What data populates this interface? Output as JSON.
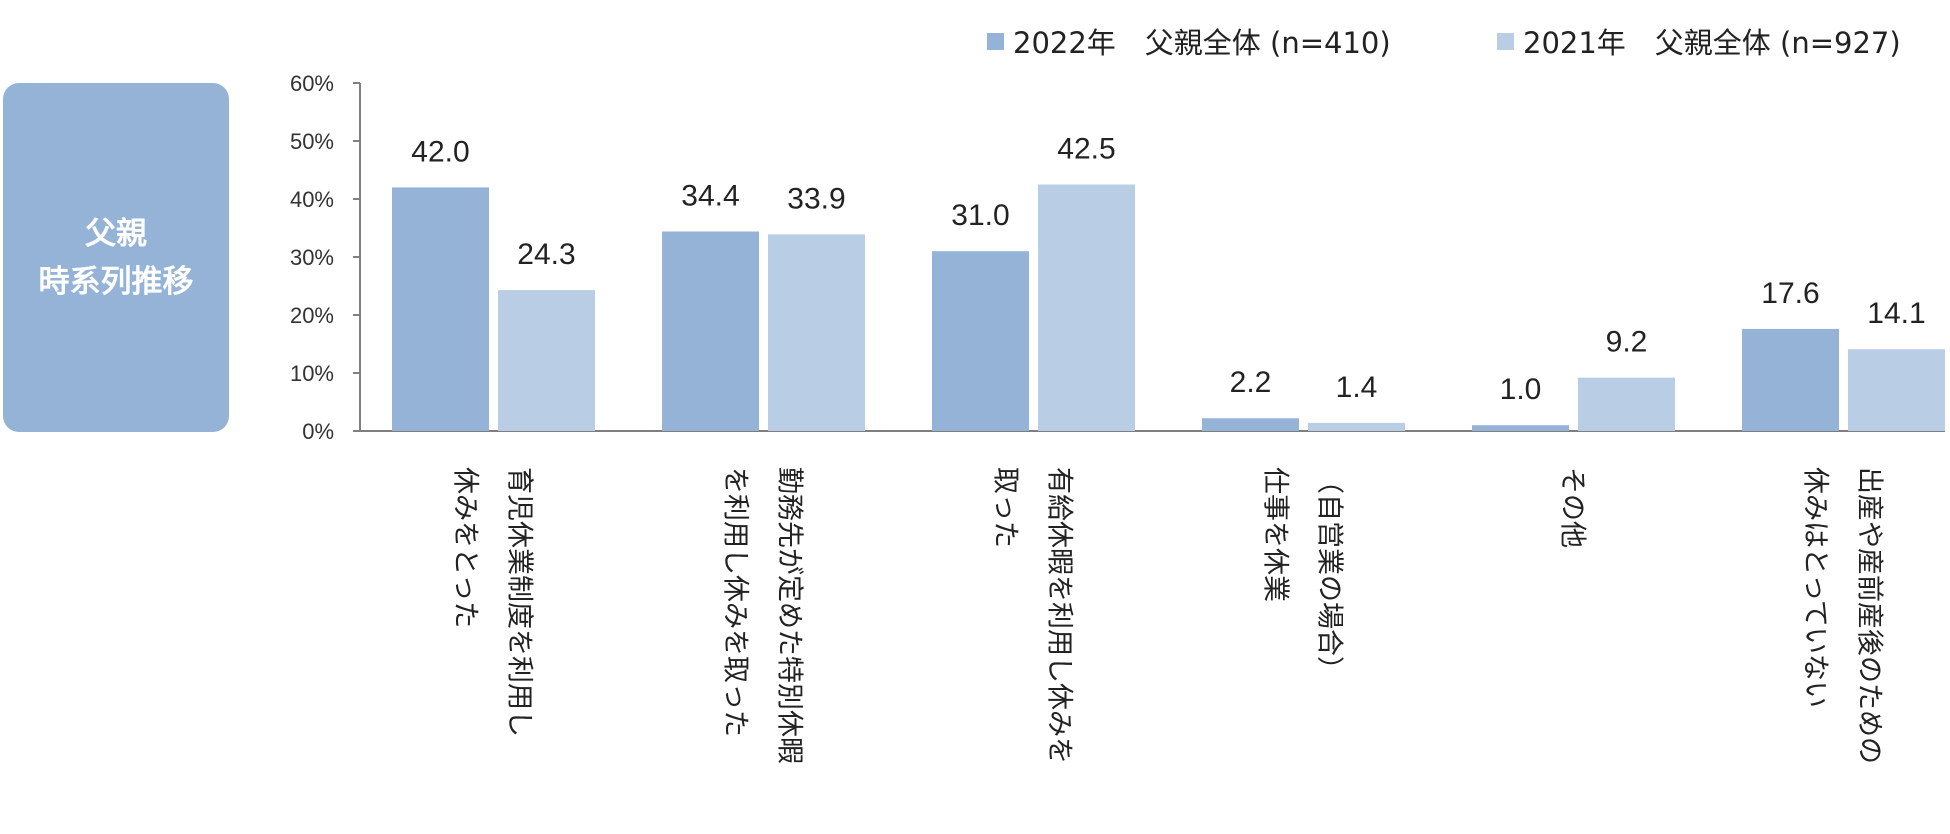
{
  "side_label": {
    "line1": "父親",
    "line2": "時系列推移"
  },
  "colors": {
    "series_2022": "#95b3d7",
    "series_2021": "#b9cde5",
    "axis": "#7f7f7f",
    "side_box": "#95b3d7"
  },
  "chart_data": {
    "type": "bar",
    "title": "",
    "xlabel": "",
    "ylabel": "",
    "ylim": [
      0,
      60
    ],
    "yticks": [
      "0%",
      "10%",
      "20%",
      "30%",
      "40%",
      "50%",
      "60%"
    ],
    "legend_position": "top-right",
    "grid": false,
    "categories": [
      [
        "育児休業制度を利用し",
        "休みをとった"
      ],
      [
        "勤務先が定めた特別休暇",
        "を利用し休みを取った"
      ],
      [
        "有給休暇を利用し休みを",
        "取った"
      ],
      [
        "（自営業の場合）",
        "仕事を休業"
      ],
      [
        "その他"
      ],
      [
        "出産や産前産後のための",
        "休みはとっていない"
      ]
    ],
    "series": [
      {
        "name": "2022年　父親全体 (n=410)",
        "values": [
          42.0,
          34.4,
          31.0,
          2.2,
          1.0,
          17.6
        ],
        "labels": [
          "42.0",
          "34.4",
          "31.0",
          "2.2",
          "1.0",
          "17.6"
        ]
      },
      {
        "name": "2021年　父親全体 (n=927)",
        "values": [
          24.3,
          33.9,
          42.5,
          1.4,
          9.2,
          14.1
        ],
        "labels": [
          "24.3",
          "33.9",
          "42.5",
          "1.4",
          "9.2",
          "14.1"
        ]
      }
    ]
  }
}
